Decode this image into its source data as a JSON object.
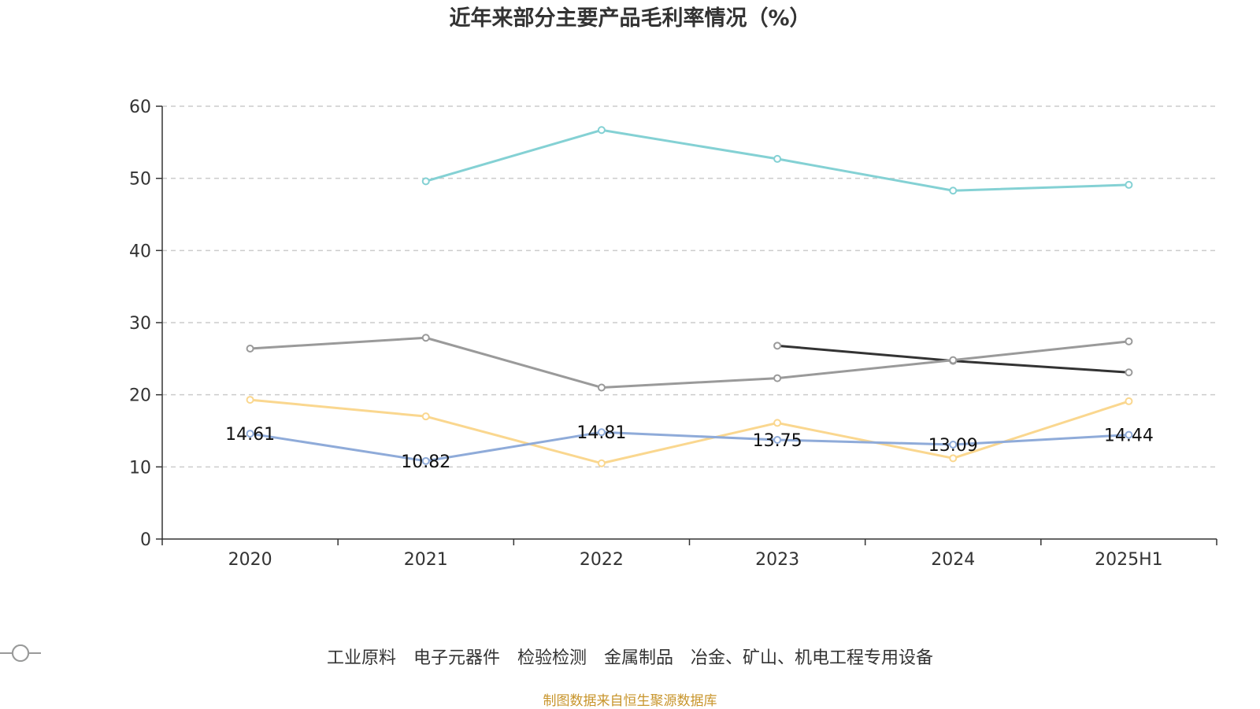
{
  "source_text": "制图数据来自恒生聚源数据库",
  "chart_data": {
    "type": "line",
    "title": "近年来部分主要产品毛利率情况（%）",
    "categories": [
      "2020",
      "2021",
      "2022",
      "2023",
      "2024",
      "2025H1"
    ],
    "ylim": [
      0,
      60
    ],
    "yticks": [
      0,
      10,
      20,
      30,
      40,
      50,
      60
    ],
    "grid": true,
    "legend_position": "bottom",
    "series": [
      {
        "name": "工业原料",
        "color": "#8fabd9",
        "values": [
          14.61,
          10.82,
          14.81,
          13.75,
          13.09,
          14.44
        ],
        "labels": [
          "14.61",
          "10.82",
          "14.81",
          "13.75",
          "13.09",
          "14.44"
        ]
      },
      {
        "name": "电子元器件",
        "color": "#fad78f",
        "values": [
          19.3,
          17.0,
          10.5,
          16.1,
          11.2,
          19.1
        ]
      },
      {
        "name": "检验检测",
        "color": "#84d1d4",
        "values": [
          null,
          49.6,
          56.7,
          52.7,
          48.3,
          49.1
        ]
      },
      {
        "name": "金属制品",
        "color": "#9a9a9a",
        "values": [
          26.4,
          27.9,
          21.0,
          22.3,
          24.8,
          27.4
        ]
      },
      {
        "name": "冶金、矿山、机电工程专用设备",
        "color": "#333333",
        "legend_color": "#9a9a9a",
        "values": [
          null,
          null,
          null,
          26.8,
          24.7,
          23.1
        ]
      }
    ]
  }
}
